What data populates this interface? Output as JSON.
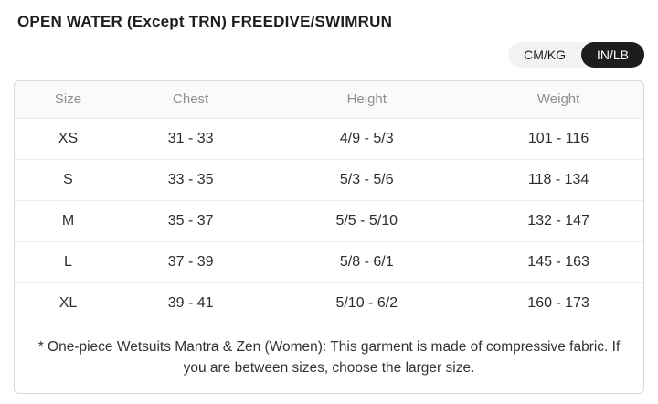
{
  "page": {
    "title": "OPEN WATER (Except TRN) FREEDIVE/SWIMRUN"
  },
  "unit_toggle": {
    "options": [
      {
        "label": "CM/KG",
        "active": false
      },
      {
        "label": "IN/LB",
        "active": true
      }
    ],
    "selected": "IN/LB"
  },
  "table": {
    "columns": [
      "Size",
      "Chest",
      "Height",
      "Weight"
    ],
    "rows": [
      {
        "size": "XS",
        "chest": "31 - 33",
        "height": "4/9 - 5/3",
        "weight": "101 - 116"
      },
      {
        "size": "S",
        "chest": "33 - 35",
        "height": "5/3 - 5/6",
        "weight": "118 - 134"
      },
      {
        "size": "M",
        "chest": "35 - 37",
        "height": "5/5 - 5/10",
        "weight": "132 - 147"
      },
      {
        "size": "L",
        "chest": "37 - 39",
        "height": "5/8 - 6/1",
        "weight": "145 - 163"
      },
      {
        "size": "XL",
        "chest": "39 - 41",
        "height": "5/10 - 6/2",
        "weight": "160 - 173"
      }
    ],
    "footnote": "* One-piece Wetsuits Mantra & Zen (Women): This garment is made of compressive fabric. If you are between sizes, choose the larger size."
  },
  "colors": {
    "title_text": "#1d1d1f",
    "header_text": "#8f8f8f",
    "body_text": "#2d2d2d",
    "table_border": "#d8d8d8",
    "row_divider": "#ececec",
    "header_bg": "#fafafa",
    "toggle_bg": "#f2f2f2",
    "toggle_active_bg": "#1d1d1f",
    "toggle_active_text": "#ffffff"
  }
}
